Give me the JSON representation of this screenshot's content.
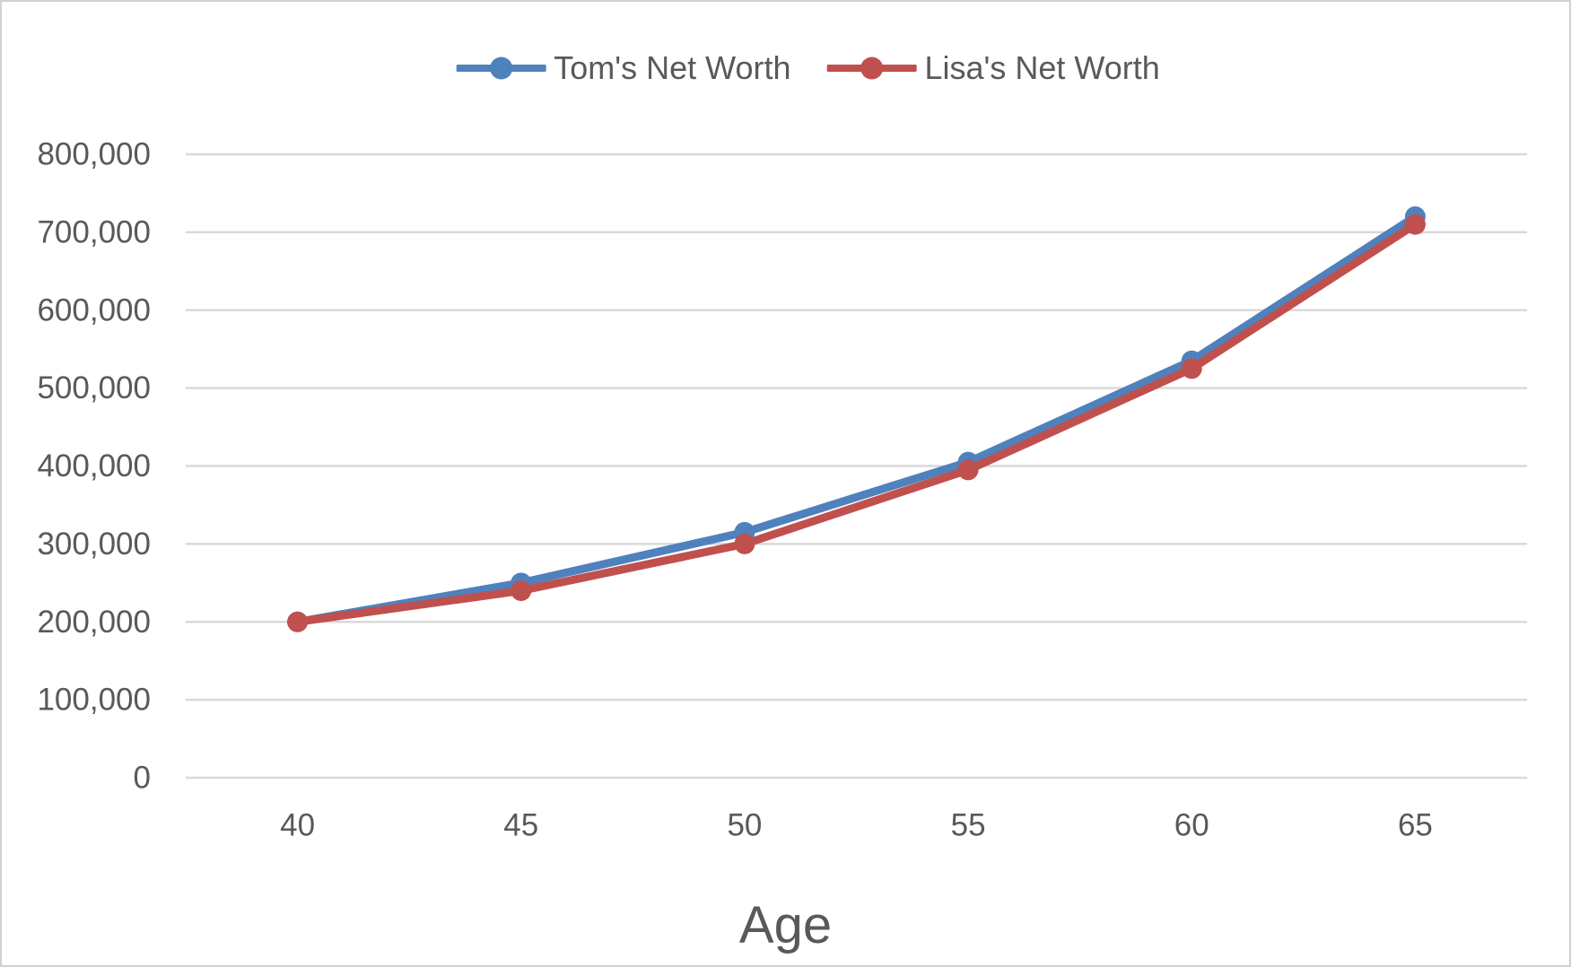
{
  "chart_data": {
    "type": "line",
    "title": "",
    "xlabel": "Age",
    "ylabel": "",
    "categories": [
      "40",
      "45",
      "50",
      "55",
      "60",
      "65"
    ],
    "series": [
      {
        "name": "Tom's Net Worth",
        "color": "#4F81BD",
        "marker": "circle",
        "values": [
          200000,
          250000,
          315000,
          405000,
          535000,
          720000
        ]
      },
      {
        "name": "Lisa's Net Worth",
        "color": "#C0504D",
        "marker": "circle",
        "values": [
          200000,
          240000,
          300000,
          395000,
          525000,
          710000
        ]
      }
    ],
    "ylim": [
      0,
      800000
    ],
    "ytick_step": 100000,
    "ytick_labels": [
      "0",
      "100,000",
      "200,000",
      "300,000",
      "400,000",
      "500,000",
      "600,000",
      "700,000",
      "800,000"
    ],
    "grid": true,
    "legend_position": "top-center"
  },
  "colors": {
    "gridline": "#d9d9d9",
    "tick_text": "#595959",
    "axis_title_text": "#595959",
    "legend_text": "#595959",
    "background": "#ffffff",
    "frame_border": "#d1d1d1"
  }
}
